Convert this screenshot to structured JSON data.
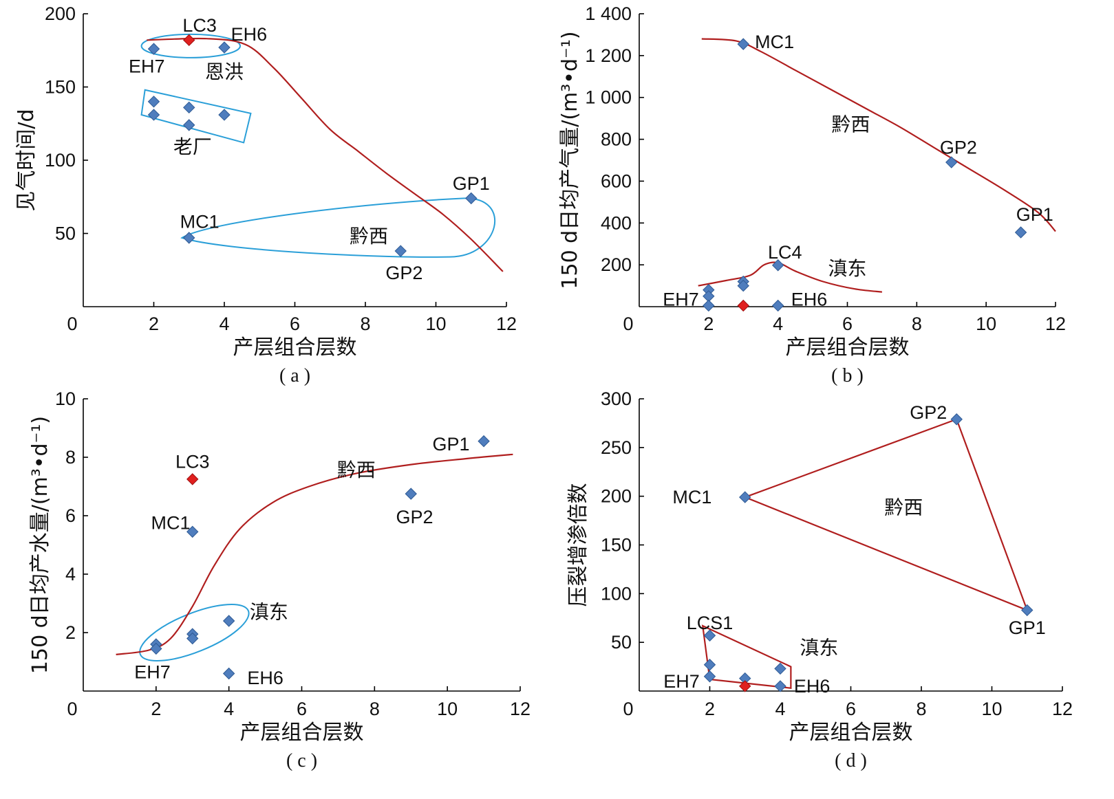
{
  "colors": {
    "marker": "#4f7dbd",
    "marker_stroke": "#2e5a94",
    "highlight": "#e0201f",
    "trend": "#b01e1e",
    "envelope": "#2a9fd8",
    "axis": "#000000"
  },
  "chart_data": [
    {
      "panel": "( a )",
      "type": "scatter",
      "xlabel": "产层组合层数",
      "ylabel": "见气时间/d",
      "xlim": [
        0,
        12
      ],
      "ylim": [
        0,
        200
      ],
      "xticks": [
        0,
        2,
        4,
        6,
        8,
        10,
        12
      ],
      "yticks": [
        50,
        100,
        150,
        200
      ],
      "points": [
        {
          "x": 2,
          "y": 176,
          "color": "marker"
        },
        {
          "x": 3,
          "y": 182,
          "color": "highlight"
        },
        {
          "x": 4,
          "y": 177,
          "color": "marker"
        },
        {
          "x": 2,
          "y": 140,
          "color": "marker"
        },
        {
          "x": 2,
          "y": 131,
          "color": "marker"
        },
        {
          "x": 3,
          "y": 136,
          "color": "marker"
        },
        {
          "x": 3,
          "y": 124,
          "color": "marker"
        },
        {
          "x": 4,
          "y": 131,
          "color": "marker"
        },
        {
          "x": 3,
          "y": 47,
          "color": "marker"
        },
        {
          "x": 9,
          "y": 38,
          "color": "marker"
        },
        {
          "x": 11,
          "y": 74,
          "color": "marker"
        }
      ],
      "annotations": [
        {
          "text": "LC3",
          "x": 3.3,
          "y": 192
        },
        {
          "text": "EH6",
          "x": 4.7,
          "y": 186
        },
        {
          "text": "EH7",
          "x": 1.8,
          "y": 164
        },
        {
          "text": "恩洪",
          "x": 4.0,
          "y": 160
        },
        {
          "text": "老厂",
          "x": 3.1,
          "y": 109
        },
        {
          "text": "GP1",
          "x": 11.0,
          "y": 84
        },
        {
          "text": "MC1",
          "x": 3.3,
          "y": 58
        },
        {
          "text": "黔西",
          "x": 8.1,
          "y": 48
        },
        {
          "text": "GP2",
          "x": 9.1,
          "y": 23
        }
      ],
      "trend": [
        [
          1.8,
          182
        ],
        [
          3.5,
          183
        ],
        [
          4.6,
          179
        ],
        [
          5.4,
          163
        ],
        [
          6.2,
          142
        ],
        [
          7.0,
          121
        ],
        [
          7.8,
          106
        ],
        [
          8.6,
          91
        ],
        [
          9.4,
          77
        ],
        [
          10.2,
          63
        ],
        [
          11,
          46
        ],
        [
          11.9,
          24
        ]
      ]
    },
    {
      "panel": "( b )",
      "type": "scatter",
      "xlabel": "产层组合层数",
      "ylabel": "150 d日均产气量/(m³•d⁻¹)",
      "xlim": [
        0,
        12
      ],
      "ylim": [
        0,
        1400
      ],
      "xticks": [
        0,
        2,
        4,
        6,
        8,
        10,
        12
      ],
      "yticks": [
        200,
        400,
        600,
        800,
        "1 000",
        "1 200",
        "1 400"
      ],
      "points": [
        {
          "x": 3,
          "y": 1255,
          "color": "marker"
        },
        {
          "x": 9,
          "y": 690,
          "color": "marker"
        },
        {
          "x": 11,
          "y": 355,
          "color": "marker"
        },
        {
          "x": 4,
          "y": 198,
          "color": "marker"
        },
        {
          "x": 3,
          "y": 120,
          "color": "marker"
        },
        {
          "x": 3,
          "y": 100,
          "color": "marker"
        },
        {
          "x": 2,
          "y": 80,
          "color": "marker"
        },
        {
          "x": 2,
          "y": 50,
          "color": "marker"
        },
        {
          "x": 2,
          "y": 5,
          "color": "marker"
        },
        {
          "x": 3,
          "y": 5,
          "color": "highlight"
        },
        {
          "x": 4,
          "y": 5,
          "color": "marker"
        }
      ],
      "annotations": [
        {
          "text": "MC1",
          "x": 3.9,
          "y": 1265
        },
        {
          "text": "黔西",
          "x": 6.1,
          "y": 870
        },
        {
          "text": "GP2",
          "x": 9.2,
          "y": 760
        },
        {
          "text": "GP1",
          "x": 11.4,
          "y": 440
        },
        {
          "text": "LC4",
          "x": 4.2,
          "y": 260
        },
        {
          "text": "滇东",
          "x": 6.0,
          "y": 180
        },
        {
          "text": "EH7",
          "x": 1.2,
          "y": 35
        },
        {
          "text": "EH6",
          "x": 4.9,
          "y": 35
        }
      ],
      "trend_qianxi": [
        [
          1.8,
          1280
        ],
        [
          2.8,
          1270
        ],
        [
          3.5,
          1220
        ],
        [
          4.5,
          1130
        ],
        [
          5.5,
          1040
        ],
        [
          6.5,
          950
        ],
        [
          7.5,
          860
        ],
        [
          8.5,
          760
        ],
        [
          9.5,
          660
        ],
        [
          10.5,
          560
        ],
        [
          11.5,
          450
        ],
        [
          12,
          360
        ]
      ],
      "trend_diandong": [
        [
          1.7,
          100
        ],
        [
          2.5,
          125
        ],
        [
          3.2,
          150
        ],
        [
          3.6,
          200
        ],
        [
          4.0,
          210
        ],
        [
          4.5,
          170
        ],
        [
          5.3,
          120
        ],
        [
          6.2,
          85
        ],
        [
          7.0,
          70
        ]
      ]
    },
    {
      "panel": "( c )",
      "type": "scatter",
      "xlabel": "产层组合层数",
      "ylabel": "150 d日均产水量/(m³•d⁻¹)",
      "xlim": [
        0,
        12
      ],
      "ylim": [
        0,
        10
      ],
      "xticks": [
        0,
        2,
        4,
        6,
        8,
        10,
        12
      ],
      "yticks": [
        2,
        4,
        6,
        8,
        10
      ],
      "points": [
        {
          "x": 3,
          "y": 7.25,
          "color": "highlight"
        },
        {
          "x": 3,
          "y": 5.45,
          "color": "marker"
        },
        {
          "x": 9,
          "y": 6.75,
          "color": "marker"
        },
        {
          "x": 11,
          "y": 8.55,
          "color": "marker"
        },
        {
          "x": 2,
          "y": 1.6,
          "color": "marker"
        },
        {
          "x": 2,
          "y": 1.45,
          "color": "marker"
        },
        {
          "x": 3,
          "y": 1.95,
          "color": "marker"
        },
        {
          "x": 3,
          "y": 1.8,
          "color": "marker"
        },
        {
          "x": 4,
          "y": 2.4,
          "color": "marker"
        },
        {
          "x": 4,
          "y": 0.6,
          "color": "marker"
        }
      ],
      "annotations": [
        {
          "text": "LC3",
          "x": 3.0,
          "y": 7.85
        },
        {
          "text": "MC1",
          "x": 2.4,
          "y": 5.75
        },
        {
          "text": "GP2",
          "x": 9.1,
          "y": 5.95
        },
        {
          "text": "GP1",
          "x": 10.1,
          "y": 8.45
        },
        {
          "text": "黔西",
          "x": 7.5,
          "y": 7.55
        },
        {
          "text": "滇东",
          "x": 5.1,
          "y": 2.7
        },
        {
          "text": "EH7",
          "x": 1.9,
          "y": 0.65
        },
        {
          "text": "EH6",
          "x": 5.0,
          "y": 0.45
        }
      ],
      "trend": [
        [
          0.9,
          1.25
        ],
        [
          1.8,
          1.4
        ],
        [
          2.4,
          1.8
        ],
        [
          3.0,
          2.9
        ],
        [
          3.6,
          4.3
        ],
        [
          4.3,
          5.55
        ],
        [
          5.2,
          6.45
        ],
        [
          6.2,
          7.0
        ],
        [
          7.5,
          7.45
        ],
        [
          9.0,
          7.75
        ],
        [
          10.5,
          7.95
        ],
        [
          11.8,
          8.1
        ]
      ]
    },
    {
      "panel": "( d )",
      "type": "scatter",
      "xlabel": "产层组合层数",
      "ylabel": "压裂增渗倍数",
      "xlim": [
        0,
        12
      ],
      "ylim": [
        0,
        300
      ],
      "xticks": [
        0,
        2,
        4,
        6,
        8,
        10,
        12
      ],
      "yticks": [
        50,
        100,
        150,
        200,
        250,
        300
      ],
      "points": [
        {
          "x": 3,
          "y": 199,
          "color": "marker"
        },
        {
          "x": 9,
          "y": 279,
          "color": "marker"
        },
        {
          "x": 11,
          "y": 83,
          "color": "marker"
        },
        {
          "x": 2,
          "y": 57,
          "color": "marker"
        },
        {
          "x": 2,
          "y": 27,
          "color": "marker"
        },
        {
          "x": 2,
          "y": 15,
          "color": "marker"
        },
        {
          "x": 3,
          "y": 13,
          "color": "marker"
        },
        {
          "x": 4,
          "y": 23,
          "color": "marker"
        },
        {
          "x": 4,
          "y": 5,
          "color": "marker"
        },
        {
          "x": 3,
          "y": 5,
          "color": "highlight"
        }
      ],
      "annotations": [
        {
          "text": "GP2",
          "x": 8.2,
          "y": 286
        },
        {
          "text": "MC1",
          "x": 1.5,
          "y": 199
        },
        {
          "text": "黔西",
          "x": 7.5,
          "y": 188
        },
        {
          "text": "GP1",
          "x": 11.0,
          "y": 65
        },
        {
          "text": "LCS1",
          "x": 2.0,
          "y": 70
        },
        {
          "text": "滇东",
          "x": 5.1,
          "y": 44
        },
        {
          "text": "EH7",
          "x": 1.2,
          "y": 10
        },
        {
          "text": "EH6",
          "x": 4.9,
          "y": 5
        }
      ],
      "triangle": [
        [
          3,
          199
        ],
        [
          9,
          279
        ],
        [
          11,
          83
        ]
      ],
      "quad": [
        [
          1.8,
          67
        ],
        [
          4.3,
          25
        ],
        [
          4.3,
          3
        ],
        [
          2,
          12
        ]
      ]
    }
  ]
}
